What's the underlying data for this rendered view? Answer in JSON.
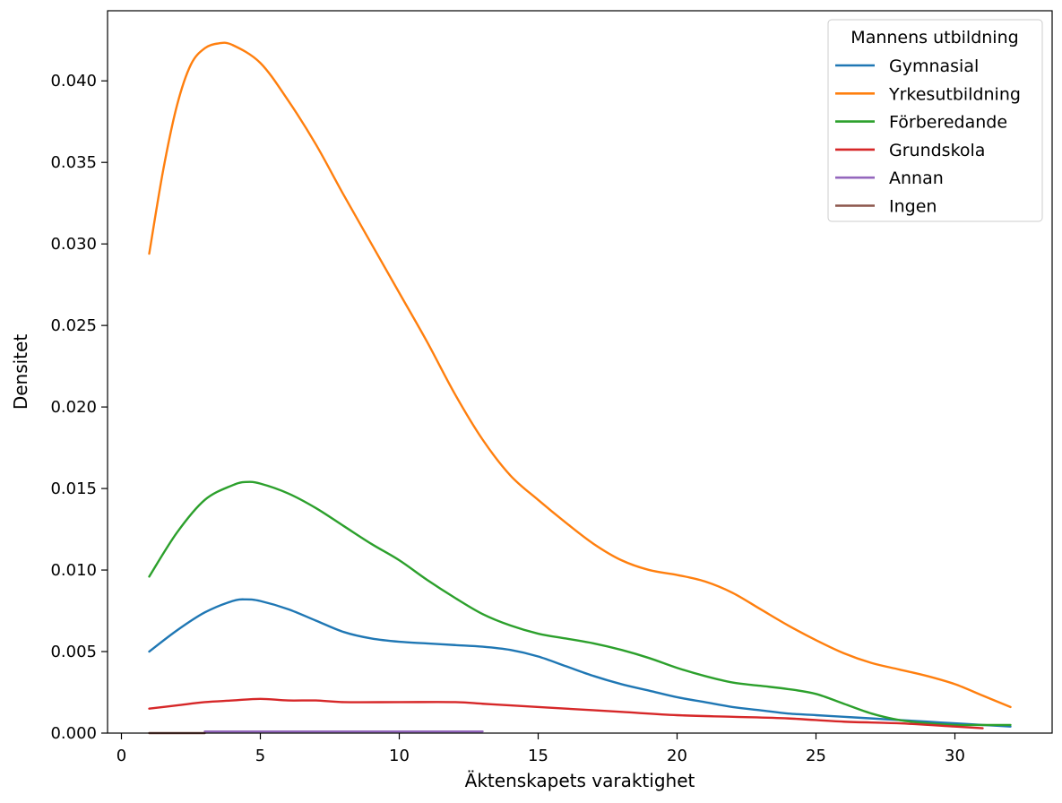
{
  "chart_data": {
    "type": "line",
    "xlabel": "Äktenskapets varaktighet",
    "ylabel": "Densitet",
    "xlim": [
      -0.5,
      33.5
    ],
    "ylim": [
      0,
      0.0443
    ],
    "xticks": [
      0,
      5,
      10,
      15,
      20,
      25,
      30
    ],
    "yticks": [
      0.0,
      0.005,
      0.01,
      0.015,
      0.02,
      0.025,
      0.03,
      0.035,
      0.04
    ],
    "xtick_labels": [
      "0",
      "5",
      "10",
      "15",
      "20",
      "25",
      "30"
    ],
    "ytick_labels": [
      "0.000",
      "0.005",
      "0.010",
      "0.015",
      "0.020",
      "0.025",
      "0.030",
      "0.035",
      "0.040"
    ],
    "grid": false,
    "legend": {
      "title": "Mannens utbildning",
      "placement": "top-right"
    },
    "series": [
      {
        "name": "Gymnasial",
        "color": "#1f77b4",
        "points": [
          [
            1,
            0.005
          ],
          [
            2,
            0.0063
          ],
          [
            3,
            0.0074
          ],
          [
            4,
            0.0081
          ],
          [
            4.5,
            0.0082
          ],
          [
            5,
            0.0081
          ],
          [
            6,
            0.0076
          ],
          [
            7,
            0.0069
          ],
          [
            8,
            0.0062
          ],
          [
            9,
            0.0058
          ],
          [
            10,
            0.0056
          ],
          [
            11,
            0.0055
          ],
          [
            12,
            0.0054
          ],
          [
            13,
            0.0053
          ],
          [
            14,
            0.0051
          ],
          [
            15,
            0.0047
          ],
          [
            16,
            0.0041
          ],
          [
            17,
            0.0035
          ],
          [
            18,
            0.003
          ],
          [
            19,
            0.0026
          ],
          [
            20,
            0.0022
          ],
          [
            21,
            0.0019
          ],
          [
            22,
            0.0016
          ],
          [
            23,
            0.0014
          ],
          [
            24,
            0.0012
          ],
          [
            25,
            0.0011
          ],
          [
            26,
            0.001
          ],
          [
            27,
            0.0009
          ],
          [
            28,
            0.0008
          ],
          [
            29,
            0.0007
          ],
          [
            30,
            0.0006
          ],
          [
            31,
            0.0005
          ],
          [
            32,
            0.0004
          ]
        ]
      },
      {
        "name": "Yrkesutbildning",
        "color": "#ff7f0e",
        "points": [
          [
            1,
            0.0294
          ],
          [
            1.5,
            0.0345
          ],
          [
            2,
            0.0385
          ],
          [
            2.5,
            0.041
          ],
          [
            3,
            0.042
          ],
          [
            3.5,
            0.0423
          ],
          [
            4,
            0.0422
          ],
          [
            5,
            0.0411
          ],
          [
            6,
            0.0388
          ],
          [
            7,
            0.0361
          ],
          [
            8,
            0.033
          ],
          [
            9,
            0.03
          ],
          [
            10,
            0.027
          ],
          [
            11,
            0.024
          ],
          [
            12,
            0.0208
          ],
          [
            13,
            0.018
          ],
          [
            14,
            0.0158
          ],
          [
            15,
            0.0143
          ],
          [
            16,
            0.0129
          ],
          [
            17,
            0.0116
          ],
          [
            18,
            0.0106
          ],
          [
            19,
            0.01
          ],
          [
            20,
            0.0097
          ],
          [
            21,
            0.0093
          ],
          [
            22,
            0.0086
          ],
          [
            23,
            0.0076
          ],
          [
            24,
            0.0066
          ],
          [
            25,
            0.0057
          ],
          [
            26,
            0.0049
          ],
          [
            27,
            0.0043
          ],
          [
            28,
            0.0039
          ],
          [
            29,
            0.0035
          ],
          [
            30,
            0.003
          ],
          [
            31,
            0.0023
          ],
          [
            32,
            0.0016
          ]
        ]
      },
      {
        "name": "Förberedande",
        "color": "#2ca02c",
        "points": [
          [
            1,
            0.0096
          ],
          [
            2,
            0.0123
          ],
          [
            3,
            0.0143
          ],
          [
            4,
            0.0152
          ],
          [
            4.5,
            0.0154
          ],
          [
            5,
            0.0153
          ],
          [
            6,
            0.0147
          ],
          [
            7,
            0.0138
          ],
          [
            8,
            0.0127
          ],
          [
            9,
            0.0116
          ],
          [
            10,
            0.0106
          ],
          [
            11,
            0.0094
          ],
          [
            12,
            0.0083
          ],
          [
            13,
            0.0073
          ],
          [
            14,
            0.0066
          ],
          [
            15,
            0.0061
          ],
          [
            16,
            0.0058
          ],
          [
            17,
            0.0055
          ],
          [
            18,
            0.0051
          ],
          [
            19,
            0.0046
          ],
          [
            20,
            0.004
          ],
          [
            21,
            0.0035
          ],
          [
            22,
            0.0031
          ],
          [
            23,
            0.0029
          ],
          [
            24,
            0.0027
          ],
          [
            25,
            0.0024
          ],
          [
            26,
            0.0018
          ],
          [
            27,
            0.0012
          ],
          [
            28,
            0.0008
          ],
          [
            29,
            0.0006
          ],
          [
            30,
            0.0005
          ],
          [
            31,
            0.0005
          ],
          [
            32,
            0.0005
          ]
        ]
      },
      {
        "name": "Grundskola",
        "color": "#d62728",
        "points": [
          [
            1,
            0.0015
          ],
          [
            2,
            0.0017
          ],
          [
            3,
            0.0019
          ],
          [
            4,
            0.002
          ],
          [
            5,
            0.0021
          ],
          [
            6,
            0.002
          ],
          [
            7,
            0.002
          ],
          [
            8,
            0.0019
          ],
          [
            10,
            0.0019
          ],
          [
            12,
            0.0019
          ],
          [
            13,
            0.0018
          ],
          [
            14,
            0.0017
          ],
          [
            16,
            0.0015
          ],
          [
            18,
            0.0013
          ],
          [
            20,
            0.0011
          ],
          [
            22,
            0.001
          ],
          [
            24,
            0.0009
          ],
          [
            26,
            0.0007
          ],
          [
            28,
            0.0006
          ],
          [
            30,
            0.0004
          ],
          [
            31,
            0.0003
          ]
        ]
      },
      {
        "name": "Annan",
        "color": "#9467bd",
        "points": [
          [
            3,
            0.0001
          ],
          [
            5,
            0.0001
          ],
          [
            8,
            0.0001
          ],
          [
            10,
            0.0001
          ],
          [
            13,
            0.0001
          ]
        ]
      },
      {
        "name": "Ingen",
        "color": "#8c564b",
        "points": [
          [
            1,
            0.0
          ],
          [
            2,
            0.0
          ],
          [
            3,
            0.0
          ]
        ]
      }
    ]
  }
}
